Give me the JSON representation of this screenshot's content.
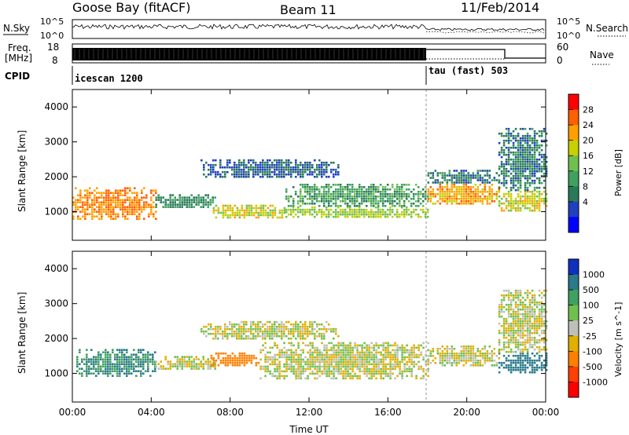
{
  "header": {
    "station": "Goose Bay (fitACF)",
    "beam": "Beam 11",
    "date": "11/Feb/2014"
  },
  "status_panels": {
    "nsky_label": "N.Sky",
    "nsearch_label": "N.Search",
    "freq_label_line1": "Freq.",
    "freq_label_line2": "[MHz]",
    "nave_label": "Nave",
    "cpid_label": "CPID",
    "noise_ticks_left": [
      "10^5",
      "10^0"
    ],
    "noise_ticks_right": [
      "10^5",
      "10^0"
    ],
    "freq_ticks": [
      "18",
      "8"
    ],
    "nave_ticks": [
      "60",
      "0"
    ],
    "cpid_segments": [
      {
        "name": "icescan 1200",
        "start_hour": 0,
        "end_hour": 18
      },
      {
        "name": "tau (fast) 503",
        "start_hour": 18,
        "end_hour": 24
      }
    ]
  },
  "chart_data": [
    {
      "type": "heatmap",
      "panel": "power",
      "title": "",
      "ylabel": "Slant Range [km]",
      "xlabel": "",
      "xlim": [
        0,
        24
      ],
      "ylim": [
        180,
        4500
      ],
      "yticks": [
        1000,
        2000,
        3000,
        4000
      ],
      "colorbar_label": "Power [dB]",
      "colorbar_ticks": [
        "28",
        "24",
        "20",
        "16",
        "12",
        "8",
        "4"
      ],
      "colorbar_colors": [
        "#ff0000",
        "#ff6000",
        "#ffa000",
        "#c8d000",
        "#70c050",
        "#40a060",
        "#2a7a5a",
        "#2040c0",
        "#0000ff"
      ],
      "regions": [
        {
          "x0": 0.0,
          "x1": 4.2,
          "y0": 800,
          "y1": 1700,
          "level": 26
        },
        {
          "x0": 4.2,
          "x1": 7.2,
          "y0": 1100,
          "y1": 1500,
          "level": 10
        },
        {
          "x0": 7.0,
          "x1": 10.8,
          "y0": 850,
          "y1": 1200,
          "level": 20
        },
        {
          "x0": 10.8,
          "x1": 18.0,
          "y0": 850,
          "y1": 1150,
          "level": 18
        },
        {
          "x0": 10.8,
          "x1": 18.0,
          "y0": 1150,
          "y1": 1800,
          "level": 12
        },
        {
          "x0": 6.5,
          "x1": 13.5,
          "y0": 2000,
          "y1": 2500,
          "level": 6
        },
        {
          "x0": 18.0,
          "x1": 21.6,
          "y0": 1200,
          "y1": 1800,
          "level": 24
        },
        {
          "x0": 18.0,
          "x1": 21.6,
          "y0": 1800,
          "y1": 2200,
          "level": 8
        },
        {
          "x0": 21.6,
          "x1": 24.0,
          "y0": 1000,
          "y1": 1600,
          "level": 20
        },
        {
          "x0": 21.6,
          "x1": 24.0,
          "y0": 1600,
          "y1": 3400,
          "level": 8
        }
      ]
    },
    {
      "type": "heatmap",
      "panel": "velocity",
      "title": "",
      "ylabel": "Slant Range [km]",
      "xlabel": "Time UT",
      "xlim": [
        0,
        24
      ],
      "ylim": [
        180,
        4500
      ],
      "yticks": [
        1000,
        2000,
        3000,
        4000
      ],
      "xticks": [
        "00:00",
        "04:00",
        "08:00",
        "12:00",
        "16:00",
        "20:00",
        "00:00"
      ],
      "colorbar_label": "Velocity [m s^-1]",
      "colorbar_ticks": [
        "1000",
        "500",
        "100",
        "25",
        "-25",
        "-100",
        "-500",
        "-1000"
      ],
      "colorbar_colors": [
        "#1030c0",
        "#2a7a8a",
        "#40a060",
        "#70c050",
        "#c0c0b8",
        "#e0b000",
        "#ff8000",
        "#ff4000",
        "#ff0000"
      ],
      "regions": [
        {
          "x0": 0.2,
          "x1": 4.2,
          "y0": 900,
          "y1": 1700,
          "level": 500
        },
        {
          "x0": 4.2,
          "x1": 7.2,
          "y0": 1100,
          "y1": 1500,
          "level": 0
        },
        {
          "x0": 7.0,
          "x1": 9.5,
          "y0": 1200,
          "y1": 1600,
          "level": -300
        },
        {
          "x0": 9.5,
          "x1": 18.0,
          "y0": 850,
          "y1": 1900,
          "level": 0
        },
        {
          "x0": 6.5,
          "x1": 13.5,
          "y0": 2000,
          "y1": 2500,
          "level": 0
        },
        {
          "x0": 18.0,
          "x1": 21.6,
          "y0": 1200,
          "y1": 1800,
          "level": 0
        },
        {
          "x0": 21.6,
          "x1": 24.0,
          "y0": 1000,
          "y1": 1600,
          "level": 800
        },
        {
          "x0": 21.6,
          "x1": 24.0,
          "y0": 1600,
          "y1": 3400,
          "level": 0
        }
      ]
    }
  ]
}
